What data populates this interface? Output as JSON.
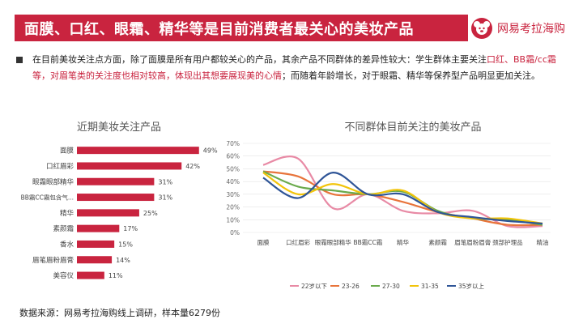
{
  "header": {
    "title": "面膜、口红、眼霜、精华等是目前消费者最关心的美妆产品",
    "brand": "网易考拉海购",
    "accent_color": "#c9243f"
  },
  "summary": {
    "part1": "在目前美妆关注点方面，除了面膜是所有用户都较关心的产品，其余产品不同群体的差异性较大：学生群体主要关注",
    "highlight": "口红、BB霜/cc霜等，对眉笔类的关注度也相对较高，体现出其想要展现美的心情",
    "part2": "；而随着年龄增长，对于眼霜、精华等保养型产品明显更加关注。"
  },
  "left_chart_title": "近期美妆关注产品",
  "right_chart_title": "不同群体目前关注的美妆产品",
  "source": "数据来源：网易考拉海购线上调研，样本量6279份",
  "chart_data": [
    {
      "type": "bar",
      "orientation": "horizontal",
      "title": "近期美妆关注产品",
      "categories": [
        "面膜",
        "口红眉彩",
        "眼霜眼部精华",
        "BB霜CC霜包含气...",
        "精华",
        "素颜霜",
        "香水",
        "眉笔眉粉眉膏",
        "美容仪"
      ],
      "values": [
        49,
        42,
        31,
        31,
        25,
        17,
        15,
        14,
        11
      ],
      "value_labels": [
        "49%",
        "42%",
        "31%",
        "31%",
        "25%",
        "17%",
        "15%",
        "14%",
        "11%"
      ],
      "xlim": [
        0,
        52
      ],
      "color": "#c9243f"
    },
    {
      "type": "line",
      "title": "不同群体目前关注的美妆产品",
      "categories": [
        "面膜",
        "口红眉彩",
        "眼霜眼部精华",
        "BB霜CC霜",
        "精华",
        "素颜霜",
        "眉笔眉粉眉膏",
        "颈部护理品",
        "精油"
      ],
      "yticks": [
        "0%",
        "10%",
        "20%",
        "30%",
        "40%",
        "50%",
        "60%",
        "70%"
      ],
      "ylim": [
        0,
        70
      ],
      "smooth": true,
      "legend_position": "bottom",
      "series": [
        {
          "name": "22岁以下",
          "color": "#e88aa5",
          "values": [
            53,
            58,
            19,
            30,
            17,
            15,
            17,
            5,
            5
          ]
        },
        {
          "name": "23-26",
          "color": "#e8743b",
          "values": [
            48,
            44,
            30,
            30,
            24,
            16,
            11,
            6,
            6
          ]
        },
        {
          "name": "27-30",
          "color": "#6aaa4c",
          "values": [
            48,
            36,
            33,
            30,
            32,
            17,
            11,
            10,
            6
          ]
        },
        {
          "name": "31-35",
          "color": "#f2c40a",
          "values": [
            47,
            30,
            38,
            30,
            33,
            16,
            11,
            11,
            7
          ]
        },
        {
          "name": "35岁以上",
          "color": "#2f5597",
          "values": [
            43,
            27,
            47,
            30,
            30,
            16,
            12,
            9,
            7
          ]
        }
      ]
    }
  ]
}
